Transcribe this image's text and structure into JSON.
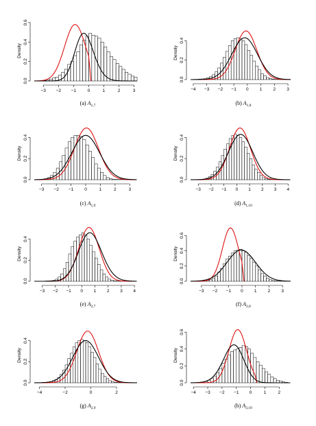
{
  "colors": {
    "kde": "#000000",
    "normal": "#e01010",
    "hist": "#000000",
    "background": "#ffffff"
  },
  "chart_data": [
    {
      "type": "bar",
      "caption_label": "(a)",
      "caption_sym": "A",
      "caption_sub": "1,7",
      "ylabel": "Density",
      "xlim": [
        -3.6,
        3.2
      ],
      "ylim": [
        0,
        0.62
      ],
      "xticks": [
        -3,
        -2,
        -1,
        0,
        1,
        2,
        3
      ],
      "yticks": [
        0.0,
        0.2,
        0.4,
        0.6
      ],
      "hist_bins": [
        -3.0,
        0.2
      ],
      "hist": [
        0.005,
        0.01,
        0.02,
        0.03,
        0.04,
        0.06,
        0.09,
        0.12,
        0.17,
        0.2,
        0.26,
        0.3,
        0.37,
        0.42,
        0.46,
        0.49,
        0.47,
        0.46,
        0.44,
        0.4,
        0.35,
        0.3,
        0.25,
        0.22,
        0.18,
        0.15,
        0.12,
        0.09,
        0.07,
        0.05,
        0.04,
        0.03,
        0.02,
        0.01,
        0.01,
        0.005,
        0.005,
        0.005,
        0.002,
        0.002
      ],
      "kde": {
        "type": "skew",
        "mean": -0.75,
        "sd": 0.8,
        "alpha": 1.2,
        "peak": 0.49
      },
      "normal": {
        "mean": -0.9,
        "sd": 0.7,
        "peak": 0.58,
        "cut": 0.0
      }
    },
    {
      "type": "bar",
      "caption_label": "(b)",
      "caption_sym": "A",
      "caption_sub": "1,8",
      "ylabel": "Density",
      "xlim": [
        -4.2,
        3.2
      ],
      "ylim": [
        0,
        0.55
      ],
      "xticks": [
        -4,
        -3,
        -2,
        -1,
        0,
        1,
        2,
        3
      ],
      "yticks": [
        0.0,
        0.2,
        0.4
      ],
      "hist_bins": [
        -4.0,
        0.2
      ],
      "hist": [
        0.002,
        0.003,
        0.005,
        0.007,
        0.01,
        0.02,
        0.03,
        0.05,
        0.08,
        0.12,
        0.17,
        0.23,
        0.29,
        0.35,
        0.4,
        0.42,
        0.43,
        0.42,
        0.4,
        0.36,
        0.3,
        0.25,
        0.19,
        0.14,
        0.1,
        0.06,
        0.04,
        0.02,
        0.01,
        0.005,
        0.002,
        0.001,
        0.001,
        0.001,
        0.001
      ],
      "kde": {
        "type": "normal",
        "mean": -0.2,
        "sd": 0.95,
        "peak": 0.43
      },
      "normal": {
        "mean": -0.1,
        "sd": 0.8,
        "peak": 0.5
      }
    },
    {
      "type": "bar",
      "caption_label": "(c)",
      "caption_sym": "A",
      "caption_sub": "1,9",
      "ylabel": "Density",
      "xlim": [
        -3.5,
        3.5
      ],
      "ylim": [
        0,
        0.5
      ],
      "xticks": [
        -3,
        -2,
        -1,
        0,
        1,
        2,
        3
      ],
      "yticks": [
        0.0,
        0.2,
        0.4
      ],
      "hist_bins": [
        -3.0,
        0.2
      ],
      "hist": [
        0.005,
        0.01,
        0.02,
        0.04,
        0.07,
        0.11,
        0.17,
        0.23,
        0.3,
        0.36,
        0.4,
        0.42,
        0.42,
        0.41,
        0.38,
        0.33,
        0.27,
        0.21,
        0.15,
        0.11,
        0.07,
        0.04,
        0.02,
        0.01,
        0.005,
        0.003,
        0.002,
        0.001,
        0.001,
        0.001
      ],
      "kde": {
        "type": "normal",
        "mean": 0.0,
        "sd": 0.95,
        "peak": 0.42
      },
      "normal": {
        "mean": 0.05,
        "sd": 0.82,
        "peak": 0.49
      }
    },
    {
      "type": "bar",
      "caption_label": "(d)",
      "caption_sym": "A",
      "caption_sub": "1,10",
      "ylabel": "Density",
      "xlim": [
        -3.6,
        4.2
      ],
      "ylim": [
        0,
        0.5
      ],
      "xticks": [
        -3,
        -2,
        -1,
        0,
        1,
        2,
        3,
        4
      ],
      "yticks": [
        0.0,
        0.2,
        0.4
      ],
      "hist_bins": [
        -3.0,
        0.2
      ],
      "hist": [
        0.002,
        0.004,
        0.008,
        0.015,
        0.03,
        0.05,
        0.08,
        0.12,
        0.17,
        0.23,
        0.29,
        0.34,
        0.39,
        0.42,
        0.43,
        0.42,
        0.4,
        0.36,
        0.31,
        0.25,
        0.2,
        0.14,
        0.1,
        0.07,
        0.04,
        0.02,
        0.01,
        0.005,
        0.003,
        0.002,
        0.001,
        0.001,
        0.001,
        0.001,
        0.001
      ],
      "kde": {
        "type": "normal",
        "mean": 0.3,
        "sd": 0.95,
        "peak": 0.43
      },
      "normal": {
        "mean": 0.25,
        "sd": 0.82,
        "peak": 0.49
      }
    },
    {
      "type": "bar",
      "caption_label": "(e)",
      "caption_sym": "A",
      "caption_sub": "2,7",
      "ylabel": "Density",
      "xlim": [
        -3.6,
        4.2
      ],
      "ylim": [
        0,
        0.52
      ],
      "xticks": [
        -3,
        -2,
        -1,
        0,
        1,
        2,
        3,
        4
      ],
      "yticks": [
        0.0,
        0.2,
        0.4
      ],
      "hist_bins": [
        -3.0,
        0.2
      ],
      "hist": [
        0.001,
        0.002,
        0.003,
        0.005,
        0.01,
        0.02,
        0.04,
        0.07,
        0.12,
        0.18,
        0.26,
        0.33,
        0.38,
        0.42,
        0.44,
        0.46,
        0.44,
        0.4,
        0.34,
        0.28,
        0.22,
        0.16,
        0.11,
        0.07,
        0.04,
        0.02,
        0.01,
        0.005,
        0.003,
        0.002,
        0.001,
        0.001,
        0.001,
        0.001,
        0.001
      ],
      "kde": {
        "type": "skew",
        "mean": 0.1,
        "sd": 1.05,
        "alpha": 0.9,
        "peak": 0.46
      },
      "normal": {
        "mean": 0.55,
        "sd": 0.78,
        "peak": 0.51
      }
    },
    {
      "type": "bar",
      "caption_label": "(f)",
      "caption_sym": "A",
      "caption_sub": "2,8",
      "ylabel": "Density",
      "xlim": [
        -3.8,
        3.6
      ],
      "ylim": [
        0,
        0.72
      ],
      "xticks": [
        -3,
        -2,
        -1,
        0,
        1,
        2,
        3
      ],
      "yticks": [
        0.0,
        0.2,
        0.4,
        0.6
      ],
      "hist_bins": [
        -3.0,
        0.2
      ],
      "hist": [
        0.003,
        0.006,
        0.01,
        0.02,
        0.04,
        0.07,
        0.12,
        0.17,
        0.23,
        0.29,
        0.33,
        0.37,
        0.4,
        0.41,
        0.42,
        0.4,
        0.38,
        0.34,
        0.3,
        0.25,
        0.2,
        0.15,
        0.1,
        0.07,
        0.04,
        0.02,
        0.01,
        0.005,
        0.003,
        0.002,
        0.001,
        0.001,
        0.001
      ],
      "kde": {
        "type": "normal",
        "mean": -0.05,
        "sd": 1.05,
        "peak": 0.41
      },
      "normal": {
        "mean": -0.85,
        "sd": 0.6,
        "peak": 0.7,
        "cut": 0.0
      }
    },
    {
      "type": "bar",
      "caption_label": "(g)",
      "caption_sym": "A",
      "caption_sub": "2,9",
      "ylabel": "Density",
      "xlim": [
        -4.4,
        3.6
      ],
      "ylim": [
        0,
        0.52
      ],
      "xticks": [
        -4,
        -2,
        0,
        2
      ],
      "yticks": [
        0.0,
        0.2,
        0.4
      ],
      "hist_bins": [
        -4.0,
        0.2
      ],
      "hist": [
        0.002,
        0.003,
        0.005,
        0.008,
        0.012,
        0.02,
        0.03,
        0.05,
        0.08,
        0.12,
        0.17,
        0.23,
        0.28,
        0.34,
        0.38,
        0.4,
        0.41,
        0.4,
        0.38,
        0.34,
        0.29,
        0.24,
        0.18,
        0.13,
        0.09,
        0.06,
        0.04,
        0.02,
        0.01,
        0.005,
        0.003,
        0.002,
        0.001,
        0.001,
        0.001,
        0.001,
        0.001,
        0.001,
        0.001,
        0.001
      ],
      "kde": {
        "type": "normal",
        "mean": -0.4,
        "sd": 1.0,
        "peak": 0.4
      },
      "normal": {
        "mean": -0.25,
        "sd": 0.85,
        "peak": 0.49
      }
    },
    {
      "type": "bar",
      "caption_label": "(h)",
      "caption_sym": "A",
      "caption_sub": "2,10",
      "ylabel": "Density",
      "xlim": [
        -4.2,
        2.8
      ],
      "ylim": [
        0,
        0.65
      ],
      "xticks": [
        -4,
        -3,
        -2,
        -1,
        0,
        1,
        2
      ],
      "yticks": [
        0.0,
        0.2,
        0.4,
        0.6
      ],
      "hist_bins": [
        -4.0,
        0.2
      ],
      "hist": [
        0.001,
        0.002,
        0.004,
        0.008,
        0.015,
        0.03,
        0.05,
        0.08,
        0.12,
        0.17,
        0.23,
        0.28,
        0.33,
        0.37,
        0.39,
        0.4,
        0.42,
        0.44,
        0.43,
        0.4,
        0.35,
        0.3,
        0.25,
        0.21,
        0.17,
        0.13,
        0.1,
        0.07,
        0.05,
        0.03,
        0.02,
        0.01,
        0.005
      ],
      "kde": {
        "type": "skew",
        "mean": -0.7,
        "sd": 0.9,
        "alpha": -1.1,
        "peak": 0.45
      },
      "normal": {
        "mean": -0.9,
        "sd": 0.62,
        "peak": 0.63,
        "cut": 0.3
      }
    }
  ]
}
